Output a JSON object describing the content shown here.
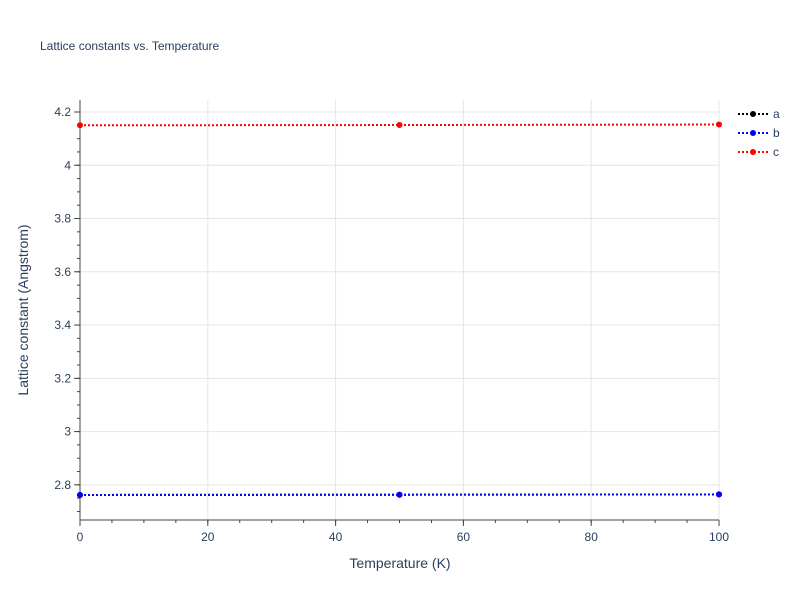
{
  "chart_data": {
    "type": "line",
    "title": "Lattice constants vs. Temperature",
    "xlabel": "Temperature (K)",
    "ylabel": "Lattice constant (Angstrom)",
    "xlim": [
      0,
      100
    ],
    "ylim": [
      2.668,
      4.245
    ],
    "x_ticks": [
      0,
      20,
      40,
      60,
      80,
      100
    ],
    "y_ticks": [
      2.8,
      3,
      3.2,
      3.4,
      3.6,
      3.8,
      4,
      4.2
    ],
    "grid": true,
    "legend_position": "top-right",
    "x": [
      0,
      50,
      100
    ],
    "series": [
      {
        "name": "a",
        "color": "#000000",
        "values": [
          2.762,
          2.763,
          2.764
        ]
      },
      {
        "name": "b",
        "color": "#0000ff",
        "values": [
          2.762,
          2.763,
          2.764
        ]
      },
      {
        "name": "c",
        "color": "#ff0000",
        "values": [
          4.15,
          4.151,
          4.153
        ]
      }
    ]
  }
}
